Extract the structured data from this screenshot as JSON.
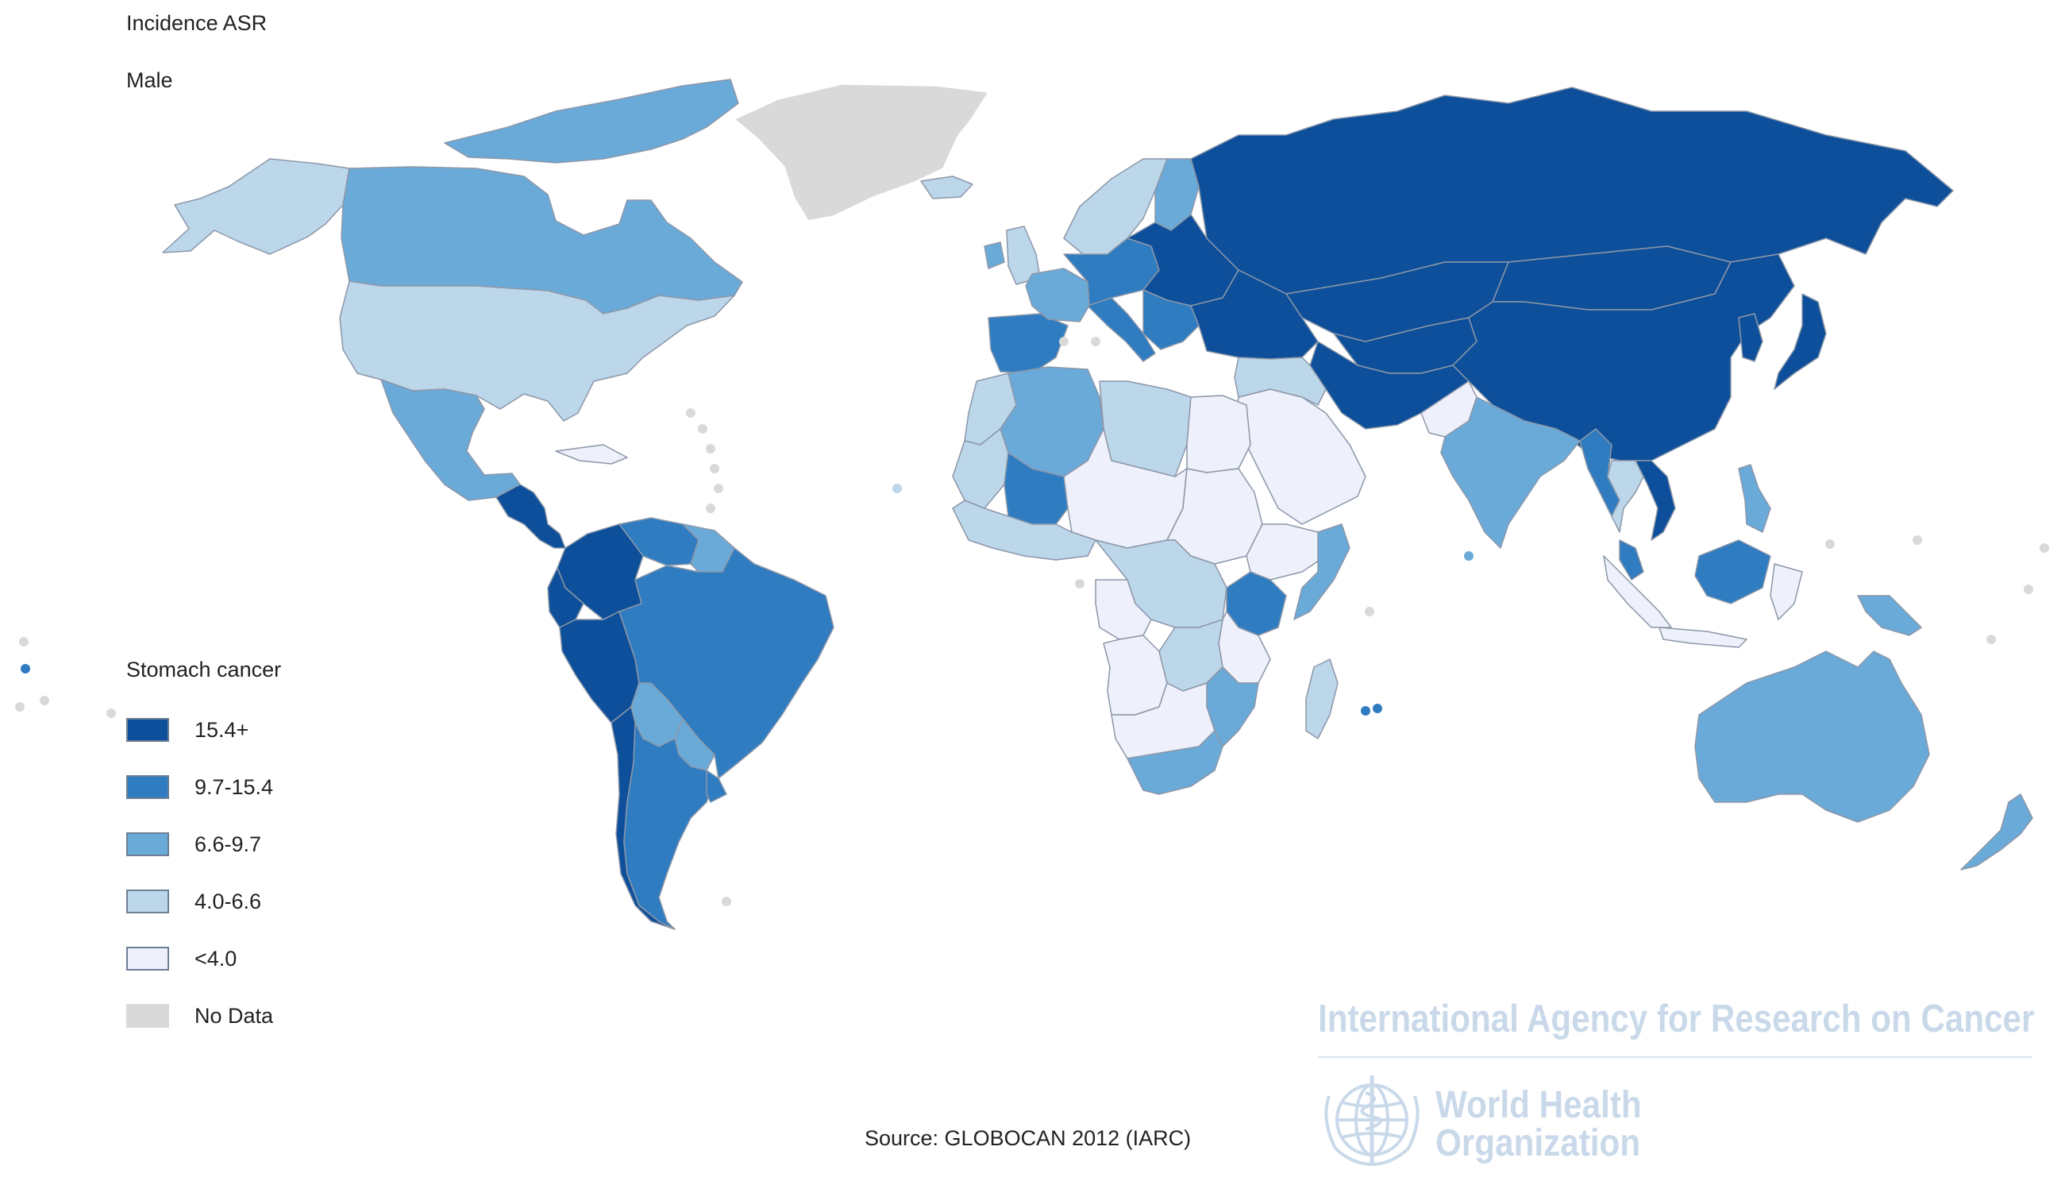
{
  "header": {
    "measure": "Incidence ASR",
    "sex": "Male"
  },
  "legend": {
    "title": "Stomach cancer",
    "items": [
      {
        "label": "15.4+",
        "color": "#0d4f9a"
      },
      {
        "label": "9.7-15.4",
        "color": "#2f7cc0"
      },
      {
        "label": "6.6-9.7",
        "color": "#6aaad9"
      },
      {
        "label": "4.0-6.6",
        "color": "#bcd6ea"
      },
      {
        "label": "<4.0",
        "color": "#eef0fb"
      },
      {
        "label": "No Data",
        "color": "#d9d9d9"
      }
    ]
  },
  "source": "Source: GLOBOCAN 2012 (IARC)",
  "watermark": {
    "agency": "International Agency for Research on Cancer",
    "who_line1": "World Health",
    "who_line2": "Organization"
  },
  "map_regions": [
    {
      "name": "Greenland",
      "class": "No Data"
    },
    {
      "name": "Alaska",
      "class": "4.0-6.6"
    },
    {
      "name": "Canada",
      "class": "6.6-9.7"
    },
    {
      "name": "Canadian Arctic Islands",
      "class": "6.6-9.7"
    },
    {
      "name": "United States",
      "class": "4.0-6.6"
    },
    {
      "name": "Mexico",
      "class": "6.6-9.7"
    },
    {
      "name": "Central America",
      "class": "15.4+"
    },
    {
      "name": "Cuba",
      "class": "<4.0"
    },
    {
      "name": "Colombia",
      "class": "15.4+"
    },
    {
      "name": "Venezuela",
      "class": "9.7-15.4"
    },
    {
      "name": "Guianas",
      "class": "6.6-9.7"
    },
    {
      "name": "Ecuador",
      "class": "15.4+"
    },
    {
      "name": "Peru",
      "class": "15.4+"
    },
    {
      "name": "Brazil",
      "class": "9.7-15.4"
    },
    {
      "name": "Bolivia",
      "class": "6.6-9.7"
    },
    {
      "name": "Paraguay",
      "class": "6.6-9.7"
    },
    {
      "name": "Chile",
      "class": "15.4+"
    },
    {
      "name": "Argentina",
      "class": "9.7-15.4"
    },
    {
      "name": "Uruguay",
      "class": "9.7-15.4"
    },
    {
      "name": "Iceland",
      "class": "4.0-6.6"
    },
    {
      "name": "Ireland",
      "class": "6.6-9.7"
    },
    {
      "name": "United Kingdom",
      "class": "4.0-6.6"
    },
    {
      "name": "Scandinavia",
      "class": "4.0-6.6"
    },
    {
      "name": "Finland",
      "class": "6.6-9.7"
    },
    {
      "name": "Iberia",
      "class": "9.7-15.4"
    },
    {
      "name": "France",
      "class": "6.6-9.7"
    },
    {
      "name": "Central Europe",
      "class": "9.7-15.4"
    },
    {
      "name": "Italy",
      "class": "9.7-15.4"
    },
    {
      "name": "Eastern Europe",
      "class": "15.4+"
    },
    {
      "name": "Balkans",
      "class": "9.7-15.4"
    },
    {
      "name": "Russia",
      "class": "15.4+"
    },
    {
      "name": "Kazakhstan",
      "class": "15.4+"
    },
    {
      "name": "Central Asia",
      "class": "15.4+"
    },
    {
      "name": "Turkey and Caucasus",
      "class": "15.4+"
    },
    {
      "name": "Iran and Afghanistan",
      "class": "15.4+"
    },
    {
      "name": "Mongolia",
      "class": "15.4+"
    },
    {
      "name": "China",
      "class": "15.4+"
    },
    {
      "name": "Korea",
      "class": "15.4+"
    },
    {
      "name": "Japan",
      "class": "15.4+"
    },
    {
      "name": "Pakistan",
      "class": "<4.0"
    },
    {
      "name": "India",
      "class": "6.6-9.7"
    },
    {
      "name": "Myanmar",
      "class": "9.7-15.4"
    },
    {
      "name": "Thailand",
      "class": "4.0-6.6"
    },
    {
      "name": "Vietnam",
      "class": "15.4+"
    },
    {
      "name": "Malaysia and Borneo",
      "class": "9.7-15.4"
    },
    {
      "name": "Philippines",
      "class": "6.6-9.7"
    },
    {
      "name": "Indonesia",
      "class": "<4.0"
    },
    {
      "name": "Papua New Guinea",
      "class": "6.6-9.7"
    },
    {
      "name": "Australia",
      "class": "6.6-9.7"
    },
    {
      "name": "New Zealand",
      "class": "6.6-9.7"
    },
    {
      "name": "Arabian Peninsula",
      "class": "<4.0"
    },
    {
      "name": "Iraq and Levant",
      "class": "4.0-6.6"
    },
    {
      "name": "Morocco",
      "class": "4.0-6.6"
    },
    {
      "name": "Algeria",
      "class": "6.6-9.7"
    },
    {
      "name": "Libya",
      "class": "4.0-6.6"
    },
    {
      "name": "Egypt",
      "class": "<4.0"
    },
    {
      "name": "Mauritania",
      "class": "4.0-6.6"
    },
    {
      "name": "Mali",
      "class": "9.7-15.4"
    },
    {
      "name": "Sahel",
      "class": "<4.0"
    },
    {
      "name": "Sudan",
      "class": "<4.0"
    },
    {
      "name": "Ethiopia",
      "class": "<4.0"
    },
    {
      "name": "Somalia",
      "class": "6.6-9.7"
    },
    {
      "name": "West Africa coast",
      "class": "4.0-6.6"
    },
    {
      "name": "Central Africa",
      "class": "4.0-6.6"
    },
    {
      "name": "Gabon and Congo",
      "class": "<4.0"
    },
    {
      "name": "Kenya and Uganda",
      "class": "9.7-15.4"
    },
    {
      "name": "Tanzania",
      "class": "<4.0"
    },
    {
      "name": "Angola",
      "class": "<4.0"
    },
    {
      "name": "Zambia",
      "class": "4.0-6.6"
    },
    {
      "name": "Mozambique",
      "class": "6.6-9.7"
    },
    {
      "name": "Namibia and Botswana",
      "class": "<4.0"
    },
    {
      "name": "South Africa",
      "class": "6.6-9.7"
    },
    {
      "name": "Madagascar",
      "class": "4.0-6.6"
    }
  ]
}
